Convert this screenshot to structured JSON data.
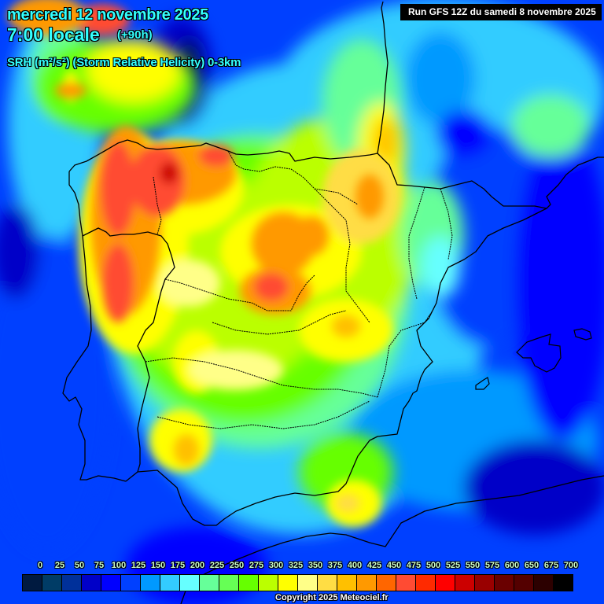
{
  "header": {
    "date": "mercredi 12 novembre 2025",
    "time": "7:00 locale",
    "lead_time": "(+90h)",
    "parameter": "SRH (m²/s²) (Storm Relative Helicity) 0-3km"
  },
  "run_info": "Run GFS 12Z du samedi 8 novembre 2025",
  "legend": {
    "labels": [
      "0",
      "25",
      "50",
      "75",
      "100",
      "125",
      "150",
      "175",
      "200",
      "225",
      "250",
      "275",
      "300",
      "325",
      "350",
      "375",
      "400",
      "425",
      "450",
      "475",
      "500",
      "525",
      "550",
      "575",
      "600",
      "650",
      "675",
      "700"
    ],
    "colors": [
      "#001a40",
      "#003c66",
      "#00309a",
      "#0000c8",
      "#0000ff",
      "#0040ff",
      "#0099ff",
      "#33ccff",
      "#66ffff",
      "#66ff99",
      "#66ff55",
      "#66ff00",
      "#bbff00",
      "#ffff00",
      "#ffff88",
      "#ffdd44",
      "#ffc000",
      "#ff9900",
      "#ff6600",
      "#ff4b33",
      "#ff2a00",
      "#ff0000",
      "#cc0000",
      "#990000",
      "#6a0000",
      "#540000",
      "#2c0000",
      "#000000"
    ]
  },
  "copyright": "Copyright 2025 Meteociel.fr",
  "map": {
    "region": "Iberian Peninsula",
    "features": [
      "Spain",
      "Portugal",
      "Balearic Islands",
      "Pyrenees border",
      "North Africa coast"
    ]
  }
}
